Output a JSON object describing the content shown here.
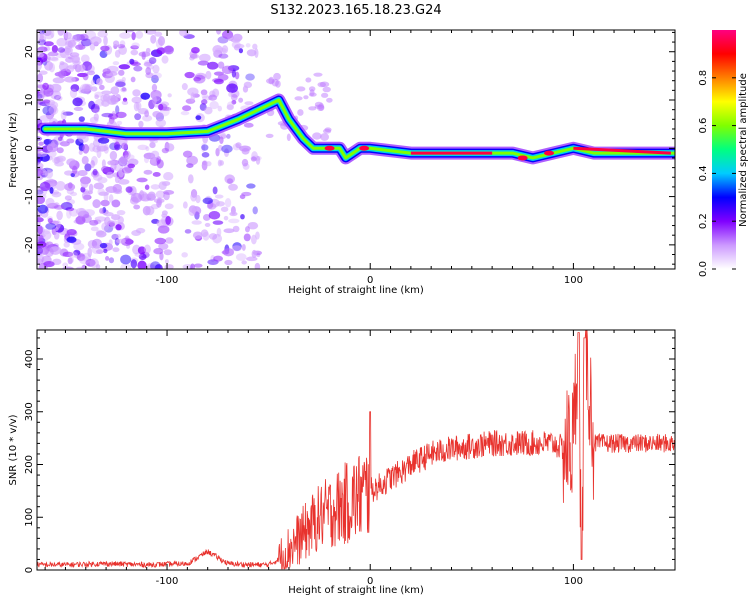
{
  "title": "S132.2023.165.18.23.G24",
  "chart_data": [
    {
      "type": "heatmap",
      "title": "",
      "xlabel": "Height of straight line (km)",
      "ylabel": "Frequency (Hz)",
      "xlim": [
        -164,
        150
      ],
      "ylim": [
        -25,
        24.5
      ],
      "x_ticks": [
        -100,
        0,
        100
      ],
      "y_ticks": [
        -20,
        -10,
        0,
        10,
        20
      ],
      "colorbar": {
        "label": "Normalized spectral amplitude",
        "range": [
          0,
          1
        ],
        "ticks": [
          0.0,
          0.2,
          0.4,
          0.6,
          0.8
        ],
        "tick_labels": [
          "0.0",
          "0.2",
          "0.4",
          "0.6",
          "0.8"
        ],
        "colormap": [
          "#ffffff",
          "#cc99ff",
          "#8000ff",
          "#0000ff",
          "#00ccff",
          "#00ff80",
          "#80ff00",
          "#ffff00",
          "#ff8000",
          "#ff0000",
          "#ff0080"
        ]
      },
      "ridge": {
        "x": [
          -160,
          -140,
          -120,
          -100,
          -80,
          -65,
          -55,
          -45,
          -40,
          -33,
          -28,
          -20,
          -15,
          -12,
          -5,
          0,
          20,
          50,
          70,
          80,
          90,
          100,
          110,
          130,
          150
        ],
        "y": [
          4,
          4,
          3,
          3,
          3.5,
          6,
          8,
          10,
          6,
          2,
          0,
          0,
          0,
          -2,
          0,
          0,
          -1,
          -1,
          -1,
          -2,
          -1,
          0,
          -1,
          -1,
          -1
        ]
      },
      "grid": false,
      "legend": "none"
    },
    {
      "type": "line",
      "title": "",
      "xlabel": "Height of straight line (km)",
      "ylabel": "SNR (10 * v/v)",
      "xlim": [
        -164,
        150
      ],
      "ylim": [
        0,
        455
      ],
      "x_ticks": [
        -100,
        0,
        100
      ],
      "y_ticks": [
        0,
        100,
        200,
        300,
        400
      ],
      "color": "#e8322d",
      "series": [
        {
          "x": [
            -164,
            -150,
            -130,
            -110,
            -90,
            -80,
            -70,
            -60,
            -50,
            -45,
            -40,
            -35,
            -30,
            -25,
            -20,
            -15,
            -10,
            -5,
            0,
            5,
            10,
            15,
            20,
            25,
            30,
            35,
            40,
            50,
            60,
            70,
            80,
            90,
            95,
            100,
            102,
            104,
            106,
            110,
            120,
            130,
            140,
            150
          ],
          "y": [
            10,
            10,
            12,
            10,
            12,
            35,
            12,
            10,
            10,
            20,
            40,
            60,
            80,
            100,
            110,
            120,
            130,
            140,
            150,
            160,
            175,
            185,
            200,
            210,
            220,
            225,
            230,
            235,
            240,
            240,
            240,
            240,
            230,
            240,
            420,
            40,
            440,
            240,
            240,
            240,
            240,
            240
          ]
        }
      ],
      "grid": false,
      "legend": "none"
    }
  ]
}
